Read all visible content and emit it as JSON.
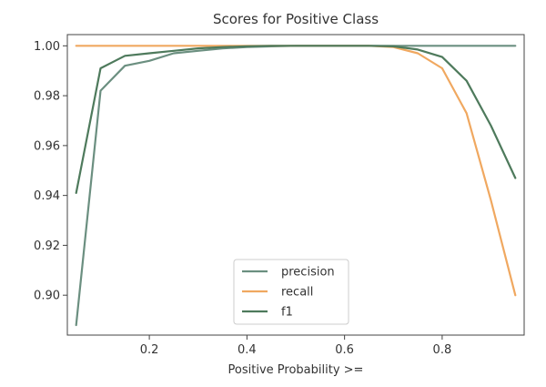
{
  "chart_data": {
    "type": "line",
    "title": "Scores for Positive Class",
    "xlabel": "Positive Probability >=",
    "ylabel": "",
    "xlim": [
      0.032,
      0.968
    ],
    "ylim": [
      0.884,
      1.0045
    ],
    "xticks": [
      0.2,
      0.4,
      0.6,
      0.8
    ],
    "xtick_labels": [
      "0.2",
      "0.4",
      "0.6",
      "0.8"
    ],
    "yticks": [
      0.9,
      0.92,
      0.94,
      0.96,
      0.98,
      1.0
    ],
    "ytick_labels": [
      "0.90",
      "0.92",
      "0.94",
      "0.96",
      "0.98",
      "1.00"
    ],
    "grid": false,
    "legend_position": "lower-center",
    "x": [
      0.05,
      0.1,
      0.15,
      0.2,
      0.25,
      0.3,
      0.35,
      0.4,
      0.45,
      0.5,
      0.55,
      0.6,
      0.65,
      0.7,
      0.75,
      0.8,
      0.85,
      0.9,
      0.95
    ],
    "series": [
      {
        "name": "precision",
        "color": "#6b8f80",
        "values": [
          0.888,
          0.982,
          0.992,
          0.994,
          0.997,
          0.998,
          0.999,
          0.9995,
          0.9998,
          1.0,
          1.0,
          1.0,
          1.0,
          1.0,
          1.0,
          1.0,
          1.0,
          1.0,
          1.0
        ]
      },
      {
        "name": "recall",
        "color": "#f0a860",
        "values": [
          1.0,
          1.0,
          1.0,
          1.0,
          1.0,
          1.0,
          1.0,
          1.0,
          1.0,
          1.0,
          1.0,
          1.0,
          1.0,
          0.9995,
          0.997,
          0.991,
          0.973,
          0.938,
          0.9
        ]
      },
      {
        "name": "f1",
        "color": "#4e7a5c",
        "values": [
          0.941,
          0.991,
          0.996,
          0.997,
          0.998,
          0.999,
          0.9995,
          0.9998,
          1.0,
          1.0,
          1.0,
          1.0,
          1.0,
          0.9998,
          0.9985,
          0.9955,
          0.986,
          0.968,
          0.947
        ]
      }
    ]
  }
}
